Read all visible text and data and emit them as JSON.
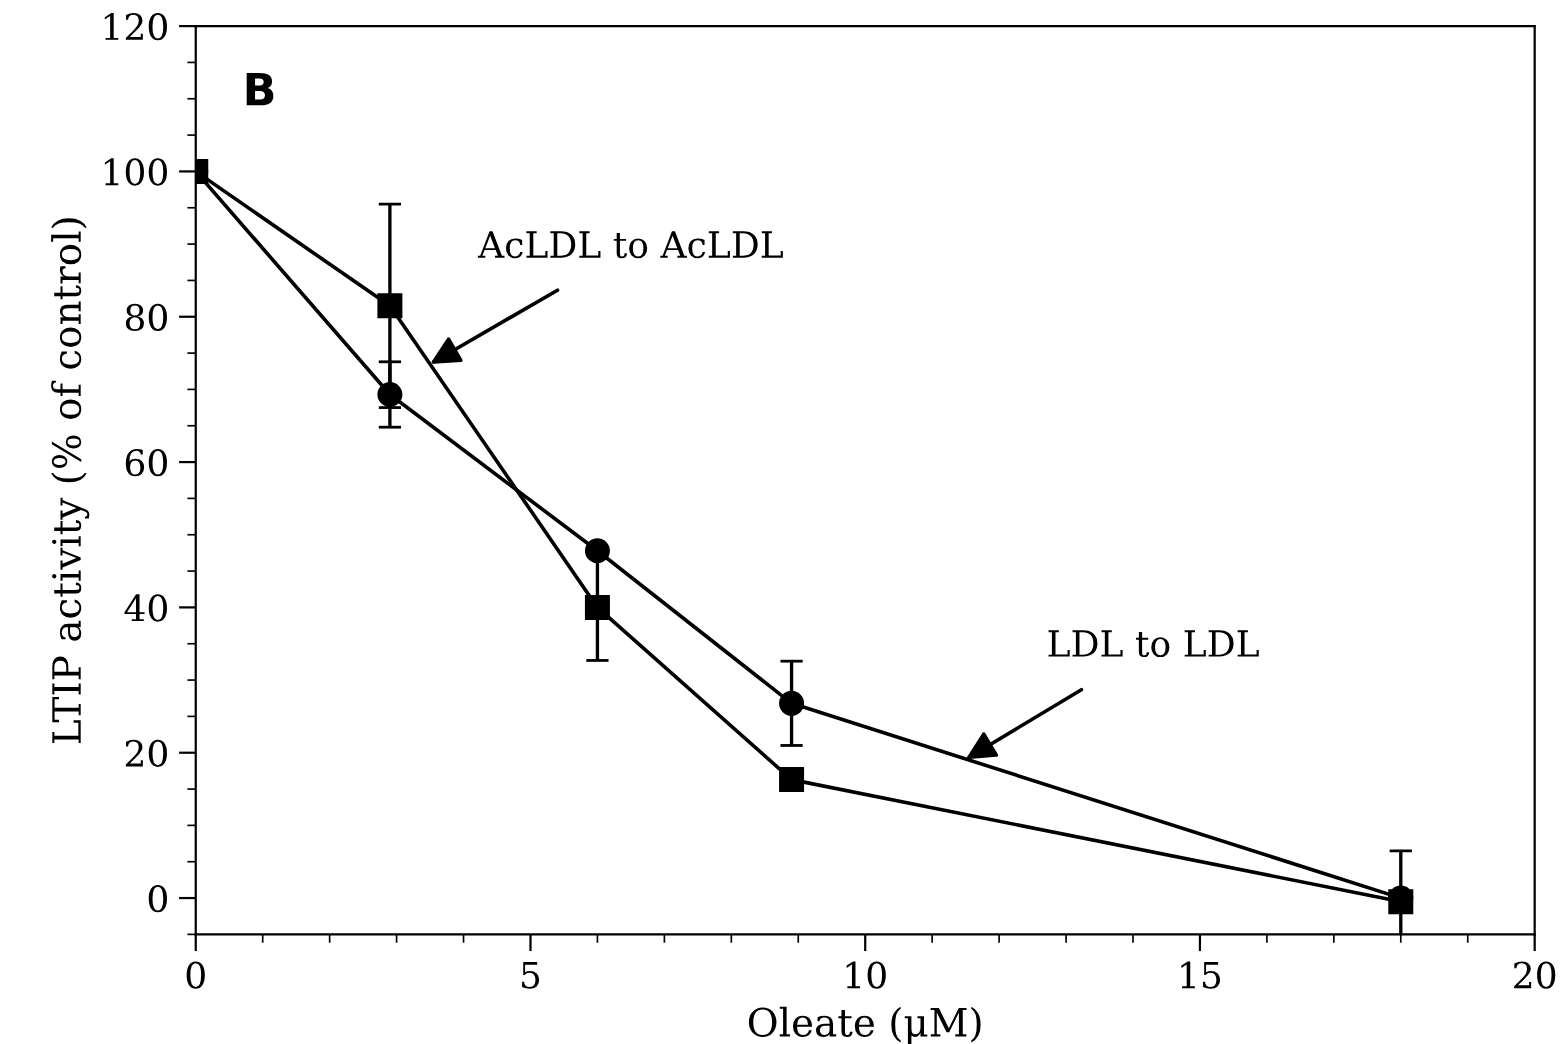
{
  "chart_data": {
    "type": "line",
    "xlabel": "Oleate (μM)",
    "ylabel": "LTIP activity (% of control)",
    "xlim": [
      0,
      20
    ],
    "xticks": [
      0,
      5,
      10,
      15,
      20
    ],
    "ylim": [
      -5,
      120
    ],
    "yticks": [
      0,
      20,
      40,
      60,
      80,
      100,
      120
    ],
    "grid": false,
    "legend": false,
    "line_style": "solid",
    "series": [
      {
        "color": "#000000",
        "marker": "circle",
        "x": [
          0,
          2.9,
          6.0,
          8.9,
          18.0
        ],
        "values": [
          100,
          69.3,
          47.8,
          26.8,
          0
        ],
        "errors": [
          null,
          4.5,
          null,
          5.8,
          null
        ]
      },
      {
        "color": "#000000",
        "marker": "square",
        "x": [
          0,
          2.9,
          6.0,
          8.9,
          18.0
        ],
        "values": [
          100,
          81.5,
          40.0,
          16.3,
          -0.5
        ],
        "errors": [
          null,
          14,
          7.3,
          null,
          7
        ]
      }
    ],
    "annotations": [
      "B",
      {
        "text": "AcLDL to AcLDL",
        "x": 3.5,
        "y": 73.5
      },
      {
        "text": "LDL to LDL",
        "x": 11.5,
        "y": 19.1
      }
    ]
  }
}
